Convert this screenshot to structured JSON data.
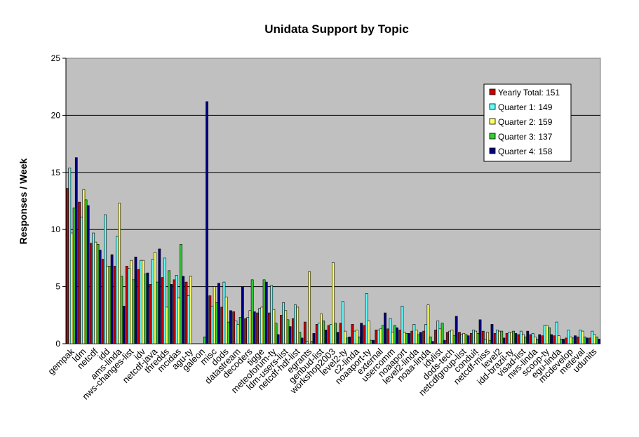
{
  "chart_data": {
    "type": "bar",
    "title": "Unidata Support by Topic",
    "xlabel": "",
    "ylabel": "Responses / Week",
    "ylim": [
      0,
      25
    ],
    "yticks": [
      0,
      5,
      10,
      15,
      20,
      25
    ],
    "grid": "horizontal",
    "legend_position": "top-right",
    "background_color": "#c0c0c0",
    "categories": [
      "gempak",
      "ldm",
      "netcdf",
      "idd",
      "ams-linda",
      "nws-changes-list",
      "idv",
      "netcdf-java",
      "thredds",
      "mcidas",
      "agu-ty",
      "galeon",
      "misc",
      "dods",
      "datastream",
      "decoders",
      "tigge",
      "meteoforum-ty",
      "ldm-users-list",
      "netcdf-hdf-list",
      "egrants",
      "genbud-list",
      "workshop2003",
      "level2-ty",
      "c2-linda",
      "noaaport-ty",
      "external",
      "usercomm",
      "noaaport",
      "level2-linda",
      "noaa-linda",
      "idvlist",
      "dods-tech",
      "netcdfgroup-list",
      "conduit",
      "netcdf-miss",
      "level2",
      "idd-brazil-ty",
      "visad-list",
      "nws-linda",
      "scoop-ty",
      "egu-linda",
      "mcdevelop",
      "meteval",
      "udunits"
    ],
    "visible_category_labels": [
      "gempak",
      "ldm",
      "netcdf",
      "idd",
      "ams-linda",
      "nws-changes-list",
      "idv",
      "netcdf-java",
      "thredds",
      "mcidas",
      "agu-ty",
      "galeon",
      "misc",
      "dods",
      "datastream",
      "decoders",
      "tigge",
      "meteoforum-ty",
      "ldm-users-list",
      "netcdf-hdf-list",
      "egrants",
      "genbud-list",
      "workshop2003",
      "level2-ty",
      "c2-linda",
      "noaaport-ty",
      "external",
      "usercomm",
      "noaaport",
      "level2-linda",
      "noaa-linda",
      "idvlist",
      "dods-tech",
      "netcdfgroup-list",
      "conduit",
      "netcdf-miss",
      "level2",
      "idd-brazil-ty",
      "visad-list",
      "nws-linda",
      "scoop-ty",
      "egu-linda",
      "mcdevelop",
      "meteval",
      "udunits"
    ],
    "series": [
      {
        "name": "Yearly Total:  151",
        "color": "#cc0000",
        "values": [
          13.6,
          12.4,
          8.8,
          7.4,
          6.8,
          6.8,
          6.5,
          5.2,
          5.8,
          5.6,
          5.4,
          0.0,
          4.2,
          3.2,
          2.8,
          2.2,
          2.7,
          2.7,
          2.5,
          2.2,
          1.9,
          1.7,
          1.6,
          1.8,
          1.7,
          1.6,
          1.2,
          1.3,
          1.2,
          1.1,
          1.1,
          1.2,
          1.0,
          1.0,
          0.9,
          1.1,
          0.9,
          0.9,
          0.8,
          0.8,
          0.7,
          0.7,
          0.5,
          0.6,
          0.5
        ]
      },
      {
        "name": "Quarter 1:   149",
        "color": "#66ffff",
        "values": [
          15.4,
          11.1,
          9.7,
          11.3,
          9.4,
          6.6,
          7.3,
          7.4,
          7.5,
          6.0,
          4.2,
          0.0,
          3.3,
          5.4,
          2.0,
          2.3,
          3.1,
          5.1,
          3.6,
          3.4,
          0.2,
          1.8,
          1.7,
          3.7,
          1.1,
          4.4,
          1.2,
          2.2,
          3.3,
          1.7,
          1.7,
          2.0,
          1.1,
          0.8,
          1.2,
          0.4,
          1.2,
          1.0,
          1.1,
          0.9,
          1.6,
          1.9,
          1.2,
          1.2,
          1.1
        ]
      },
      {
        "name": "Quarter 2:   159",
        "color": "#ffff66",
        "values": [
          9.7,
          13.5,
          8.9,
          6.8,
          12.3,
          7.3,
          7.3,
          8.0,
          3.2,
          4.0,
          5.9,
          0.0,
          5.0,
          4.1,
          1.7,
          2.9,
          3.2,
          3.0,
          2.9,
          3.2,
          6.3,
          2.6,
          7.1,
          1.1,
          1.2,
          2.0,
          1.3,
          1.0,
          1.0,
          1.2,
          3.4,
          1.3,
          1.2,
          0.9,
          1.1,
          1.0,
          1.1,
          1.0,
          0.8,
          0.6,
          1.6,
          0.7,
          0.6,
          1.1,
          0.8
        ]
      },
      {
        "name": "Quarter 3:   137",
        "color": "#33cc33",
        "values": [
          11.9,
          12.6,
          8.7,
          6.8,
          5.9,
          5.6,
          6.1,
          5.4,
          6.4,
          8.7,
          0.0,
          0.6,
          3.6,
          1.9,
          2.3,
          5.6,
          5.6,
          1.8,
          2.1,
          1.0,
          0.2,
          2.0,
          1.8,
          0.5,
          0.6,
          0.3,
          1.6,
          1.6,
          0.9,
          0.8,
          0.6,
          1.8,
          0.7,
          0.8,
          0.9,
          0.3,
          1.1,
          1.1,
          0.6,
          0.4,
          1.4,
          0.4,
          0.5,
          0.6,
          0.6
        ]
      },
      {
        "name": "Quarter 4:   158",
        "color": "#000080",
        "values": [
          16.3,
          12.1,
          8.2,
          7.8,
          3.3,
          7.6,
          6.2,
          8.3,
          5.2,
          5.9,
          0.0,
          21.2,
          5.3,
          2.9,
          5.0,
          2.8,
          5.4,
          0.8,
          1.5,
          0.5,
          0.9,
          1.2,
          1.0,
          0.6,
          1.8,
          0.3,
          2.7,
          1.4,
          0.9,
          1.0,
          0.2,
          0.3,
          2.4,
          0.7,
          2.1,
          1.7,
          0.5,
          0.9,
          1.1,
          0.8,
          0.8,
          0.4,
          0.7,
          0.5,
          0.4
        ]
      }
    ]
  }
}
